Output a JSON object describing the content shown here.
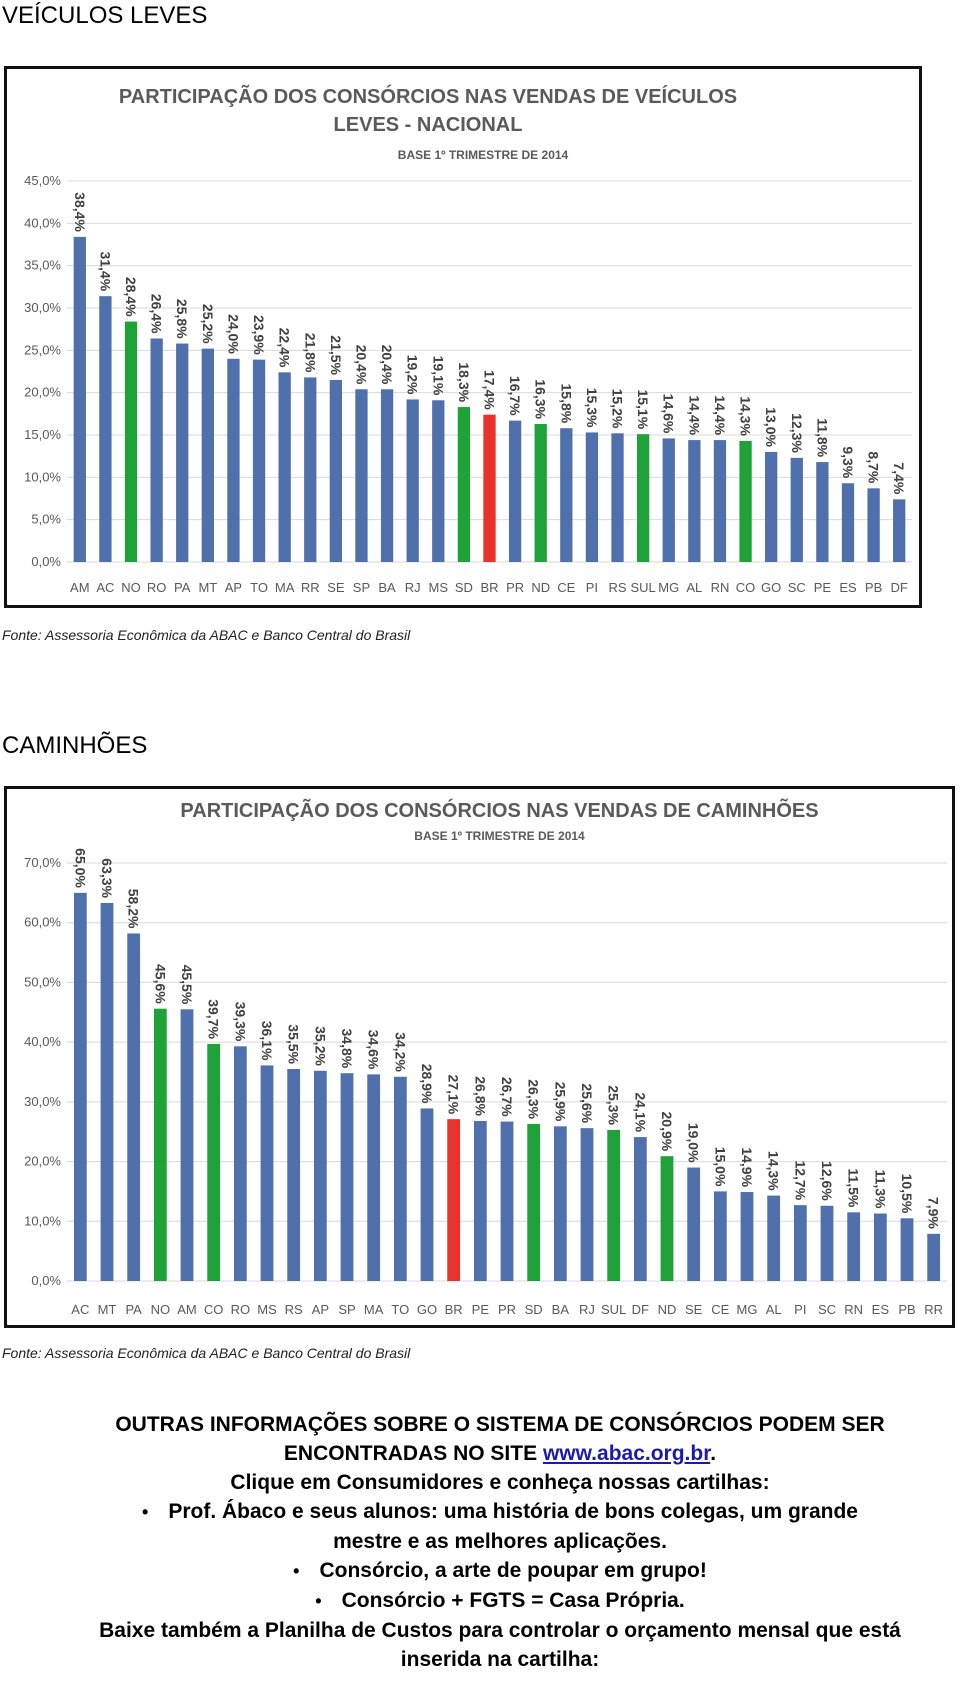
{
  "document": {
    "heading1": "VEÍCULOS LEVES",
    "source1": "Fonte: Assessoria Econômica da ABAC e Banco Central do Brasil",
    "heading2": "CAMINHÕES",
    "source2": "Fonte: Assessoria Econômica da ABAC e Banco Central do Brasil",
    "info_text": "OUTRAS INFORMAÇÕES SOBRE O SISTEMA DE CONSÓRCIOS PODEM SER ENCONTRADAS NO SITE",
    "info_link": "www.abac.org.br",
    "info_end": ".",
    "click": "Clique em Consumidores e conheça nossas cartilhas:",
    "bullets": [
      "Prof. Ábaco e seus alunos: uma história de bons colegas, um grande mestre e as melhores aplicações.",
      "Consórcio, a arte de poupar em grupo!",
      "Consórcio + FGTS = Casa Própria."
    ],
    "footer": "Baixe também a Planilha de Custos para controlar o orçamento mensal que está inserida na cartilha:"
  },
  "chart_data": [
    {
      "type": "bar",
      "title": "PARTICIPAÇÃO DOS CONSÓRCIOS NAS VENDAS DE VEÍCULOS LEVES - NACIONAL",
      "subtitle": "BASE 1º TRIMESTRE DE 2014",
      "categories": [
        "AM",
        "AC",
        "NO",
        "RO",
        "PA",
        "MT",
        "AP",
        "TO",
        "MA",
        "RR",
        "SE",
        "SP",
        "BA",
        "RJ",
        "MS",
        "SD",
        "BR",
        "PR",
        "ND",
        "CE",
        "PI",
        "RS",
        "SUL",
        "MG",
        "AL",
        "RN",
        "CO",
        "GO",
        "SC",
        "PE",
        "ES",
        "PB",
        "DF"
      ],
      "values": [
        38.4,
        31.4,
        28.4,
        26.4,
        25.8,
        25.2,
        24.0,
        23.9,
        22.4,
        21.8,
        21.5,
        20.4,
        20.4,
        19.2,
        19.1,
        18.3,
        17.4,
        16.7,
        16.3,
        15.8,
        15.3,
        15.2,
        15.1,
        14.6,
        14.4,
        14.4,
        14.3,
        13.0,
        12.3,
        11.8,
        9.3,
        8.7,
        7.4
      ],
      "value_labels": [
        "38,4%",
        "31,4%",
        "28,4%",
        "26,4%",
        "25,8%",
        "25,2%",
        "24,0%",
        "23,9%",
        "22,4%",
        "21,8%",
        "21,5%",
        "20,4%",
        "20,4%",
        "19,2%",
        "19,1%",
        "18,3%",
        "17,4%",
        "16,7%",
        "16,3%",
        "15,8%",
        "15,3%",
        "15,2%",
        "15,1%",
        "14,6%",
        "14,4%",
        "14,4%",
        "14,3%",
        "13,0%",
        "12,3%",
        "11,8%",
        "9,3%",
        "8,7%",
        "7,4%"
      ],
      "colors": [
        "#4f6fad",
        "#4f6fad",
        "#1fa339",
        "#4f6fad",
        "#4f6fad",
        "#4f6fad",
        "#4f6fad",
        "#4f6fad",
        "#4f6fad",
        "#4f6fad",
        "#4f6fad",
        "#4f6fad",
        "#4f6fad",
        "#4f6fad",
        "#4f6fad",
        "#1fa339",
        "#e8322b",
        "#4f6fad",
        "#1fa339",
        "#4f6fad",
        "#4f6fad",
        "#4f6fad",
        "#1fa339",
        "#4f6fad",
        "#4f6fad",
        "#4f6fad",
        "#1fa339",
        "#4f6fad",
        "#4f6fad",
        "#4f6fad",
        "#4f6fad",
        "#4f6fad",
        "#4f6fad"
      ],
      "ylim": [
        0,
        45
      ],
      "yticks": [
        {
          "value": 0,
          "label": "0,0%"
        },
        {
          "value": 5,
          "label": "5,0%"
        },
        {
          "value": 10,
          "label": "10,0%"
        },
        {
          "value": 15,
          "label": "15,0%"
        },
        {
          "value": 20,
          "label": "20,0%"
        },
        {
          "value": 25,
          "label": "25,0%"
        },
        {
          "value": 30,
          "label": "30,0%"
        },
        {
          "value": 35,
          "label": "35,0%"
        },
        {
          "value": 40,
          "label": "40,0%"
        },
        {
          "value": 45,
          "label": "45,0%"
        }
      ],
      "grid": true
    },
    {
      "type": "bar",
      "title": "PARTICIPAÇÃO DOS CONSÓRCIOS NAS VENDAS DE CAMINHÕES",
      "subtitle": "BASE 1º TRIMESTRE DE 2014",
      "categories": [
        "AC",
        "MT",
        "PA",
        "NO",
        "AM",
        "CO",
        "RO",
        "MS",
        "RS",
        "AP",
        "SP",
        "MA",
        "TO",
        "GO",
        "BR",
        "PE",
        "PR",
        "SD",
        "BA",
        "RJ",
        "SUL",
        "DF",
        "ND",
        "SE",
        "CE",
        "MG",
        "AL",
        "PI",
        "SC",
        "RN",
        "ES",
        "PB",
        "RR"
      ],
      "values": [
        65.0,
        63.3,
        58.2,
        45.6,
        45.5,
        39.7,
        39.3,
        36.1,
        35.5,
        35.2,
        34.8,
        34.6,
        34.2,
        28.9,
        27.1,
        26.8,
        26.7,
        26.3,
        25.9,
        25.6,
        25.3,
        24.1,
        20.9,
        19.0,
        15.0,
        14.9,
        14.3,
        12.7,
        12.6,
        11.5,
        11.3,
        10.5,
        7.9
      ],
      "value_labels": [
        "65,0%",
        "63,3%",
        "58,2%",
        "45,6%",
        "45,5%",
        "39,7%",
        "39,3%",
        "36,1%",
        "35,5%",
        "35,2%",
        "34,8%",
        "34,6%",
        "34,2%",
        "28,9%",
        "27,1%",
        "26,8%",
        "26,7%",
        "26,3%",
        "25,9%",
        "25,6%",
        "25,3%",
        "24,1%",
        "20,9%",
        "19,0%",
        "15,0%",
        "14,9%",
        "14,3%",
        "12,7%",
        "12,6%",
        "11,5%",
        "11,3%",
        "10,5%",
        "7,9%"
      ],
      "colors": [
        "#4f6fad",
        "#4f6fad",
        "#4f6fad",
        "#1fa339",
        "#4f6fad",
        "#1fa339",
        "#4f6fad",
        "#4f6fad",
        "#4f6fad",
        "#4f6fad",
        "#4f6fad",
        "#4f6fad",
        "#4f6fad",
        "#4f6fad",
        "#e8322b",
        "#4f6fad",
        "#4f6fad",
        "#1fa339",
        "#4f6fad",
        "#4f6fad",
        "#1fa339",
        "#4f6fad",
        "#1fa339",
        "#4f6fad",
        "#4f6fad",
        "#4f6fad",
        "#4f6fad",
        "#4f6fad",
        "#4f6fad",
        "#4f6fad",
        "#4f6fad",
        "#4f6fad",
        "#4f6fad"
      ],
      "ylim": [
        0,
        70
      ],
      "yticks": [
        {
          "value": 0,
          "label": "0,0%"
        },
        {
          "value": 10,
          "label": "10,0%"
        },
        {
          "value": 20,
          "label": "20,0%"
        },
        {
          "value": 30,
          "label": "30,0%"
        },
        {
          "value": 40,
          "label": "40,0%"
        },
        {
          "value": 50,
          "label": "50,0%"
        },
        {
          "value": 60,
          "label": "60,0%"
        },
        {
          "value": 70,
          "label": "70,0%"
        }
      ],
      "grid": true
    }
  ]
}
